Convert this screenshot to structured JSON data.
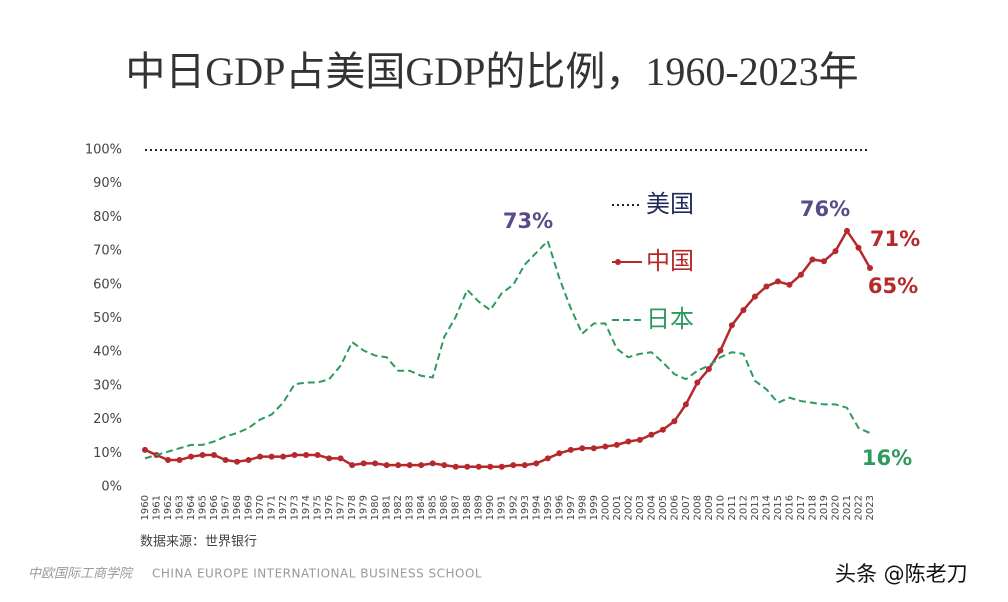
{
  "chart_data": {
    "type": "line",
    "title": "中日GDP占美国GDP的比例，1960-2023年",
    "categories": [
      "1960",
      "1961",
      "1962",
      "1963",
      "1964",
      "1965",
      "1966",
      "1967",
      "1968",
      "1969",
      "1970",
      "1971",
      "1972",
      "1973",
      "1974",
      "1975",
      "1976",
      "1977",
      "1978",
      "1979",
      "1980",
      "1981",
      "1982",
      "1983",
      "1984",
      "1985",
      "1986",
      "1987",
      "1988",
      "1989",
      "1990",
      "1991",
      "1992",
      "1993",
      "1994",
      "1995",
      "1996",
      "1997",
      "1998",
      "1999",
      "2000",
      "2001",
      "2002",
      "2003",
      "2004",
      "2005",
      "2006",
      "2007",
      "2008",
      "2009",
      "2010",
      "2011",
      "2012",
      "2013",
      "2014",
      "2015",
      "2016",
      "2017",
      "2018",
      "2019",
      "2020",
      "2021",
      "2022",
      "2023"
    ],
    "series": [
      {
        "name": "美国",
        "color": "#1f2a5c",
        "line_color": "#222222",
        "style": "dotted",
        "values": [
          100,
          100,
          100,
          100,
          100,
          100,
          100,
          100,
          100,
          100,
          100,
          100,
          100,
          100,
          100,
          100,
          100,
          100,
          100,
          100,
          100,
          100,
          100,
          100,
          100,
          100,
          100,
          100,
          100,
          100,
          100,
          100,
          100,
          100,
          100,
          100,
          100,
          100,
          100,
          100,
          100,
          100,
          100,
          100,
          100,
          100,
          100,
          100,
          100,
          100,
          100,
          100,
          100,
          100,
          100,
          100,
          100,
          100,
          100,
          100,
          100,
          100,
          100,
          100
        ]
      },
      {
        "name": "中国",
        "color": "#b5282b",
        "style": "markers",
        "values": [
          11,
          9.5,
          8,
          8,
          9,
          9.5,
          9.5,
          8,
          7.5,
          8,
          9,
          9,
          9,
          9.5,
          9.5,
          9.5,
          8.5,
          8.5,
          6.5,
          7,
          7,
          6.5,
          6.5,
          6.5,
          6.5,
          7,
          6.5,
          6,
          6,
          6,
          6,
          6,
          6.5,
          6.5,
          7,
          8.5,
          10,
          11,
          11.5,
          11.5,
          12,
          12.5,
          13.5,
          14,
          15.5,
          17,
          19.5,
          24.5,
          31,
          35,
          40.5,
          48,
          52.5,
          56.5,
          59.5,
          61,
          60,
          63,
          67.5,
          67,
          70,
          76,
          71,
          65
        ]
      },
      {
        "name": "日本",
        "color": "#2e9a5e",
        "style": "dashed",
        "values": [
          8.5,
          9.5,
          10.5,
          11.5,
          12.5,
          12.5,
          13.5,
          15,
          16,
          17.5,
          20,
          21.5,
          25,
          30.5,
          31,
          31,
          32,
          36,
          43,
          40.5,
          39,
          38.5,
          34.5,
          34.5,
          33,
          32.5,
          44.5,
          50.5,
          58.5,
          55,
          52.5,
          57.5,
          60,
          66,
          69.5,
          73,
          62,
          53,
          45.5,
          48.5,
          48.5,
          41,
          38.5,
          39.5,
          40,
          37,
          33.5,
          32,
          34.5,
          36,
          38.5,
          40,
          39.5,
          31.5,
          29,
          25,
          26.5,
          25.5,
          25,
          24.5,
          24.5,
          23.5,
          17.5,
          16
        ]
      }
    ],
    "annotations": [
      {
        "text": "73%",
        "color": "#5b4a8a"
      },
      {
        "text": "76%",
        "color": "#5b4a8a"
      },
      {
        "text": "71%",
        "color": "#b5282b"
      },
      {
        "text": "65%",
        "color": "#b5282b"
      },
      {
        "text": "16%",
        "color": "#2e9a5e"
      }
    ],
    "ylim": [
      0,
      100
    ],
    "yticks": [
      {
        "value": 0,
        "label": "0%"
      },
      {
        "value": 10,
        "label": "10%"
      },
      {
        "value": 20,
        "label": "20%"
      },
      {
        "value": 30,
        "label": "30%"
      },
      {
        "value": 40,
        "label": "40%"
      },
      {
        "value": 50,
        "label": "50%"
      },
      {
        "value": 60,
        "label": "60%"
      },
      {
        "value": 70,
        "label": "70%"
      },
      {
        "value": 80,
        "label": "80%"
      },
      {
        "value": 90,
        "label": "90%"
      },
      {
        "value": 100,
        "label": "100%"
      }
    ],
    "grid": false,
    "source": "数据来源：世界银行",
    "footer_cn": "中欧国际工商学院",
    "footer_en": "CHINA EUROPE INTERNATIONAL BUSINESS SCHOOL",
    "watermark": "头条 @陈老刀"
  }
}
